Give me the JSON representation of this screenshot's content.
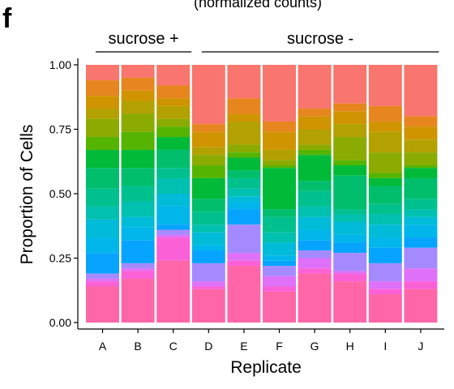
{
  "panel_label": "f",
  "subtitle": "(normalized counts)",
  "conditions": [
    {
      "label": "sucrose +",
      "from": "A",
      "to": "C"
    },
    {
      "label": "sucrose -",
      "from": "D",
      "to": "J"
    }
  ],
  "chart_data": {
    "type": "bar",
    "stacked": true,
    "title": "",
    "xlabel": "Replicate",
    "ylabel": "Proportion of Cells",
    "ylim": [
      0,
      1
    ],
    "yticks": [
      "0.00",
      "0.25",
      "0.50",
      "0.75",
      "1.00"
    ],
    "grid": false,
    "categories": [
      "A",
      "B",
      "C",
      "D",
      "E",
      "F",
      "G",
      "H",
      "I",
      "J"
    ],
    "colors": [
      "#F8766D",
      "#E7851E",
      "#D09400",
      "#B2A100",
      "#8BAB00",
      "#55B400",
      "#00BA38",
      "#00BE6C",
      "#00C08E",
      "#00C0AF",
      "#00BCD8",
      "#00B6EB",
      "#06A4FF",
      "#A58AFF",
      "#DF70F8",
      "#FB61D7",
      "#FF66A8"
    ],
    "boundaries_top_to_bottom": [
      [
        1.0,
        0.94,
        0.88,
        0.83,
        0.79,
        0.72,
        0.67,
        0.6,
        0.52,
        0.45,
        0.4,
        0.33,
        0.27,
        0.19,
        0.17,
        0.16,
        0.14,
        0.0
      ],
      [
        1.0,
        0.95,
        0.9,
        0.86,
        0.81,
        0.74,
        0.67,
        0.6,
        0.53,
        0.47,
        0.41,
        0.37,
        0.32,
        0.23,
        0.21,
        0.2,
        0.17,
        0.0
      ],
      [
        1.0,
        0.92,
        0.87,
        0.84,
        0.79,
        0.76,
        0.72,
        0.67,
        0.6,
        0.56,
        0.5,
        0.45,
        0.38,
        0.36,
        0.34,
        0.33,
        0.24,
        0.0
      ],
      [
        1.0,
        0.77,
        0.74,
        0.68,
        0.65,
        0.61,
        0.56,
        0.48,
        0.43,
        0.38,
        0.35,
        0.3,
        0.28,
        0.23,
        0.16,
        0.14,
        0.13,
        0.0
      ],
      [
        1.0,
        0.87,
        0.81,
        0.78,
        0.69,
        0.66,
        0.64,
        0.59,
        0.56,
        0.52,
        0.49,
        0.47,
        0.44,
        0.38,
        0.27,
        0.24,
        0.22,
        0.0
      ],
      [
        1.0,
        0.78,
        0.74,
        0.67,
        0.63,
        0.61,
        0.6,
        0.44,
        0.41,
        0.35,
        0.31,
        0.26,
        0.24,
        0.22,
        0.18,
        0.14,
        0.12,
        0.0
      ],
      [
        1.0,
        0.83,
        0.8,
        0.75,
        0.69,
        0.67,
        0.65,
        0.55,
        0.51,
        0.45,
        0.41,
        0.36,
        0.32,
        0.28,
        0.25,
        0.21,
        0.19,
        0.0
      ],
      [
        1.0,
        0.85,
        0.82,
        0.77,
        0.72,
        0.63,
        0.61,
        0.57,
        0.44,
        0.42,
        0.39,
        0.34,
        0.31,
        0.27,
        0.2,
        0.19,
        0.16,
        0.0
      ],
      [
        1.0,
        0.84,
        0.78,
        0.74,
        0.66,
        0.58,
        0.56,
        0.53,
        0.46,
        0.42,
        0.38,
        0.33,
        0.29,
        0.23,
        0.16,
        0.13,
        0.11,
        0.0
      ],
      [
        1.0,
        0.8,
        0.76,
        0.71,
        0.66,
        0.61,
        0.6,
        0.56,
        0.48,
        0.44,
        0.41,
        0.38,
        0.33,
        0.29,
        0.21,
        0.16,
        0.13,
        0.0
      ]
    ]
  }
}
